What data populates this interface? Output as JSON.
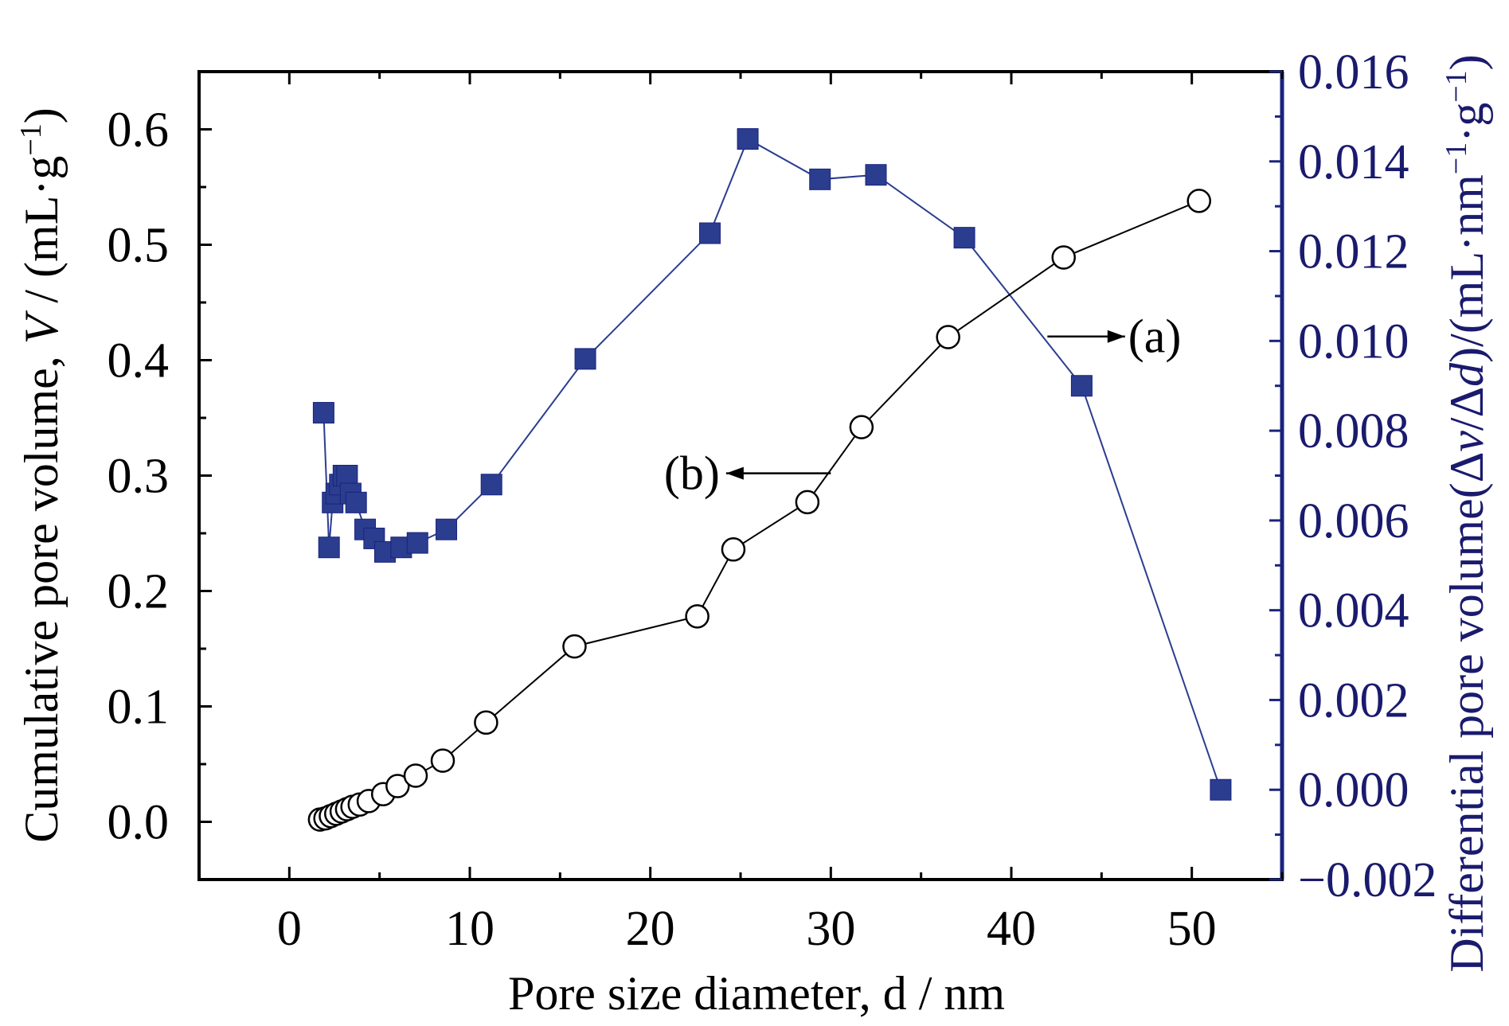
{
  "chart_data": {
    "type": "scatter",
    "xlabel": "Pore size diameter, d / nm",
    "ylabel_left": {
      "text": "Cumulative pore volume, ",
      "italic": "V",
      "units": " / (mL·g",
      "sup": "−1",
      "close": ")"
    },
    "ylabel_right": {
      "text": "Differential pore volume(Δ",
      "italic1": "v",
      "slash": "/Δ",
      "italic2": "d",
      "units": ")/(mL·nm",
      "sup1": "−1",
      "dot": "·g",
      "sup2": "−1",
      "close": ")"
    },
    "xlim": [
      -5,
      55
    ],
    "ylim_left": [
      -0.05,
      0.65
    ],
    "ylim_right": [
      -0.002,
      0.016
    ],
    "x_ticks": [
      0,
      10,
      20,
      30,
      40,
      50
    ],
    "x_tick_labels": [
      "0",
      "10",
      "20",
      "30",
      "40",
      "50"
    ],
    "y_left_ticks": [
      0.0,
      0.1,
      0.2,
      0.3,
      0.4,
      0.5,
      0.6
    ],
    "y_left_tick_labels": [
      "0.0",
      "0.1",
      "0.2",
      "0.3",
      "0.4",
      "0.5",
      "0.6"
    ],
    "y_right_ticks": [
      -0.002,
      0.0,
      0.002,
      0.004,
      0.006,
      0.008,
      0.01,
      0.012,
      0.014,
      0.016
    ],
    "y_right_tick_labels": [
      "−0.002",
      "0.000",
      "0.002",
      "0.004",
      "0.006",
      "0.008",
      "0.010",
      "0.012",
      "0.014",
      "0.016"
    ],
    "colors": {
      "axis_left": "#000000",
      "axis_right": "#1a237e",
      "series_a": "#2b3d8f",
      "series_b": "#000000",
      "right_text": "#1a1a6e"
    },
    "series": [
      {
        "name": "(a)",
        "axis": "right",
        "marker": "filled-square",
        "x": [
          1.9,
          2.2,
          2.4,
          2.6,
          2.8,
          3.0,
          3.2,
          3.4,
          3.7,
          4.2,
          4.7,
          5.3,
          6.2,
          7.1,
          8.7,
          11.2,
          16.4,
          23.3,
          25.4,
          29.4,
          32.5,
          37.4,
          43.9,
          51.6
        ],
        "y": [
          0.0084,
          0.0054,
          0.0064,
          0.0066,
          0.0068,
          0.007,
          0.007,
          0.0066,
          0.0064,
          0.0058,
          0.0056,
          0.0053,
          0.0054,
          0.0055,
          0.0058,
          0.0068,
          0.0096,
          0.0124,
          0.0145,
          0.0136,
          0.0137,
          0.0123,
          0.009,
          0.0
        ]
      },
      {
        "name": "(b)",
        "axis": "left",
        "marker": "open-circle",
        "x": [
          1.7,
          2.0,
          2.3,
          2.6,
          2.9,
          3.2,
          3.5,
          3.9,
          4.4,
          5.2,
          6.0,
          7.0,
          8.5,
          10.9,
          15.8,
          22.6,
          24.6,
          28.7,
          31.7,
          36.5,
          42.9,
          50.4
        ],
        "y": [
          0.002,
          0.003,
          0.005,
          0.007,
          0.009,
          0.011,
          0.013,
          0.015,
          0.018,
          0.024,
          0.031,
          0.04,
          0.053,
          0.086,
          0.152,
          0.178,
          0.236,
          0.277,
          0.342,
          0.42,
          0.489,
          0.538
        ]
      }
    ],
    "annotations": [
      {
        "label": "(a)",
        "points_to": "right",
        "arrow_from": [
          42.0,
          0.0101
        ],
        "arrow_to": [
          46.3,
          0.0101
        ]
      },
      {
        "label": "(b)",
        "points_to": "left",
        "arrow_from": [
          30.0,
          0.302
        ],
        "arrow_to": [
          24.2,
          0.302
        ]
      }
    ]
  }
}
